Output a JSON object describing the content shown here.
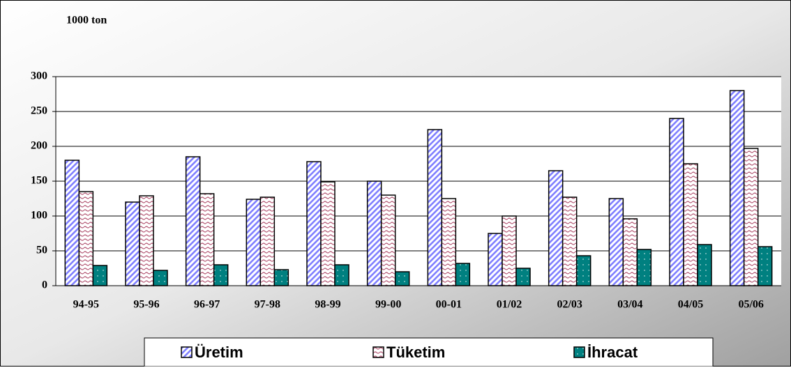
{
  "chart_data": {
    "type": "bar",
    "title": "1000 ton",
    "categories": [
      "94-95",
      "95-96",
      "96-97",
      "97-98",
      "98-99",
      "99-00",
      "00-01",
      "01/02",
      "02/03",
      "03/04",
      "04/05",
      "05/06"
    ],
    "series": [
      {
        "name": "Üretim",
        "color": "#8080ff",
        "values": [
          180,
          120,
          185,
          124,
          178,
          150,
          224,
          75,
          165,
          125,
          240,
          280
        ]
      },
      {
        "name": "Tüketim",
        "color": "#b0506e",
        "values": [
          135,
          129,
          132,
          127,
          149,
          130,
          125,
          100,
          127,
          96,
          175,
          197
        ]
      },
      {
        "name": "İhracat",
        "color": "#008080",
        "values": [
          29,
          22,
          30,
          23,
          30,
          20,
          32,
          25,
          43,
          52,
          59,
          56
        ]
      }
    ],
    "ylim": [
      0,
      300
    ],
    "yticks": [
      0,
      50,
      100,
      150,
      200,
      250,
      300
    ],
    "grid": true
  }
}
